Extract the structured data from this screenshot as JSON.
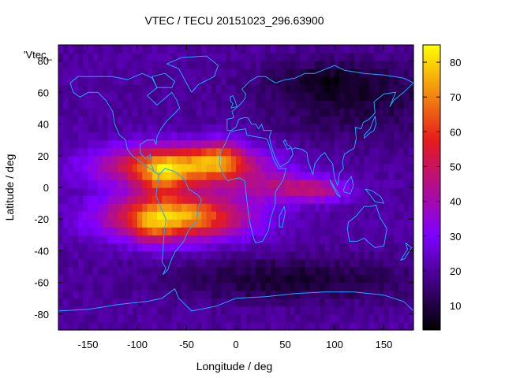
{
  "chart_data": {
    "type": "heatmap",
    "title": "VTEC / TECU 20151023_296.63900",
    "xlabel": "Longitude / deg",
    "ylabel": "Latitude / deg",
    "series_key": "'Vtec_",
    "xlim": [
      -180,
      180
    ],
    "ylim": [
      -90,
      90
    ],
    "x_ticks": [
      -150,
      -100,
      -50,
      0,
      50,
      100,
      150
    ],
    "y_ticks": [
      -80,
      -60,
      -40,
      -20,
      0,
      20,
      40,
      60,
      80
    ],
    "colorbar": {
      "range": [
        3,
        85
      ],
      "ticks": [
        10,
        20,
        30,
        40,
        50,
        60,
        70,
        80
      ]
    },
    "colormap": [
      "#000000",
      "#7f00ff",
      "#e51c1c",
      "#ffff00"
    ],
    "coastline_color": "#1ea7ff",
    "grid_resolution_deg": 5,
    "background_level": 20,
    "features": [
      {
        "name": "equatorial anomaly crest north",
        "lon": -55,
        "lat": 14,
        "sigma_lon": 55,
        "sigma_lat": 9,
        "vtec": 54
      },
      {
        "name": "equatorial anomaly crest south",
        "lon": -60,
        "lat": -18,
        "sigma_lon": 50,
        "sigma_lat": 10,
        "vtec": 56
      },
      {
        "name": "peak south america",
        "lon": -75,
        "lat": 5,
        "sigma_lon": 16,
        "sigma_lat": 8,
        "vtec": 20
      },
      {
        "name": "peak atlantic",
        "lon": -15,
        "lat": 20,
        "sigma_lon": 15,
        "sigma_lat": 8,
        "vtec": 18
      },
      {
        "name": "peak south",
        "lon": -85,
        "lat": -25,
        "sigma_lon": 15,
        "sigma_lat": 8,
        "vtec": 14
      },
      {
        "name": "africa tongue",
        "lon": 55,
        "lat": 0,
        "sigma_lon": 35,
        "sigma_lat": 6,
        "vtec": 22
      },
      {
        "name": "arabian sea tongue",
        "lon": 90,
        "lat": -2,
        "sigma_lon": 18,
        "sigma_lat": 5,
        "vtec": 12
      },
      {
        "name": "subantarctic low",
        "lon": 60,
        "lat": -58,
        "sigma_lon": 90,
        "sigma_lat": 10,
        "vtec": -12
      },
      {
        "name": "north pacific low",
        "lon": 120,
        "lat": 55,
        "sigma_lon": 70,
        "sigma_lat": 18,
        "vtec": -10
      },
      {
        "name": "siberia low",
        "lon": 90,
        "lat": 68,
        "sigma_lon": 40,
        "sigma_lat": 8,
        "vtec": -7
      }
    ],
    "coastlines": [
      {
        "name": "north-america",
        "points": [
          [
            -168,
            66
          ],
          [
            -160,
            70
          ],
          [
            -140,
            70
          ],
          [
            -125,
            70
          ],
          [
            -110,
            68
          ],
          [
            -95,
            72
          ],
          [
            -85,
            69
          ],
          [
            -80,
            63
          ],
          [
            -90,
            58
          ],
          [
            -80,
            52
          ],
          [
            -65,
            60
          ],
          [
            -60,
            55
          ],
          [
            -57,
            50
          ],
          [
            -65,
            45
          ],
          [
            -70,
            42
          ],
          [
            -76,
            37
          ],
          [
            -80,
            32
          ],
          [
            -81,
            27
          ],
          [
            -83,
            30
          ],
          [
            -90,
            30
          ],
          [
            -97,
            27
          ],
          [
            -97,
            22
          ],
          [
            -92,
            18
          ],
          [
            -87,
            21
          ],
          [
            -86,
            15
          ],
          [
            -83,
            10
          ],
          [
            -78,
            8
          ],
          [
            -85,
            11
          ],
          [
            -92,
            14
          ],
          [
            -105,
            20
          ],
          [
            -110,
            24
          ],
          [
            -112,
            30
          ],
          [
            -118,
            33
          ],
          [
            -123,
            40
          ],
          [
            -125,
            48
          ],
          [
            -132,
            55
          ],
          [
            -140,
            60
          ],
          [
            -150,
            60
          ],
          [
            -158,
            57
          ],
          [
            -165,
            60
          ],
          [
            -168,
            66
          ]
        ]
      },
      {
        "name": "south-america",
        "points": [
          [
            -78,
            8
          ],
          [
            -72,
            12
          ],
          [
            -62,
            10
          ],
          [
            -52,
            5
          ],
          [
            -48,
            -1
          ],
          [
            -38,
            -5
          ],
          [
            -35,
            -8
          ],
          [
            -38,
            -13
          ],
          [
            -40,
            -22
          ],
          [
            -48,
            -27
          ],
          [
            -53,
            -34
          ],
          [
            -58,
            -38
          ],
          [
            -62,
            -41
          ],
          [
            -65,
            -45
          ],
          [
            -67,
            -48
          ],
          [
            -69,
            -52
          ],
          [
            -74,
            -55
          ],
          [
            -71,
            -51
          ],
          [
            -75,
            -47
          ],
          [
            -74,
            -40
          ],
          [
            -73,
            -30
          ],
          [
            -71,
            -20
          ],
          [
            -76,
            -13
          ],
          [
            -81,
            -5
          ],
          [
            -80,
            0
          ],
          [
            -78,
            8
          ]
        ]
      },
      {
        "name": "greenland",
        "points": [
          [
            -45,
            60
          ],
          [
            -38,
            65
          ],
          [
            -22,
            70
          ],
          [
            -18,
            77
          ],
          [
            -30,
            83
          ],
          [
            -55,
            82
          ],
          [
            -70,
            78
          ],
          [
            -58,
            75
          ],
          [
            -52,
            68
          ],
          [
            -45,
            60
          ]
        ]
      },
      {
        "name": "africa",
        "points": [
          [
            -17,
            15
          ],
          [
            -16,
            21
          ],
          [
            -10,
            29
          ],
          [
            -6,
            35
          ],
          [
            0,
            36
          ],
          [
            10,
            37
          ],
          [
            11,
            33
          ],
          [
            20,
            32
          ],
          [
            30,
            31
          ],
          [
            32,
            30
          ],
          [
            35,
            24
          ],
          [
            38,
            18
          ],
          [
            43,
            12
          ],
          [
            51,
            12
          ],
          [
            48,
            5
          ],
          [
            40,
            -3
          ],
          [
            40,
            -10
          ],
          [
            35,
            -20
          ],
          [
            33,
            -27
          ],
          [
            27,
            -34
          ],
          [
            20,
            -35
          ],
          [
            18,
            -32
          ],
          [
            14,
            -22
          ],
          [
            12,
            -13
          ],
          [
            10,
            -2
          ],
          [
            9,
            4
          ],
          [
            4,
            6
          ],
          [
            -5,
            5
          ],
          [
            -8,
            4
          ],
          [
            -13,
            8
          ],
          [
            -17,
            15
          ]
        ]
      },
      {
        "name": "europe-asia",
        "points": [
          [
            -9,
            36
          ],
          [
            -9,
            43
          ],
          [
            -2,
            44
          ],
          [
            -4,
            48
          ],
          [
            2,
            51
          ],
          [
            5,
            53
          ],
          [
            9,
            56
          ],
          [
            10,
            59
          ],
          [
            6,
            62
          ],
          [
            14,
            67
          ],
          [
            22,
            70
          ],
          [
            30,
            70
          ],
          [
            40,
            66
          ],
          [
            50,
            68
          ],
          [
            60,
            69
          ],
          [
            70,
            72
          ],
          [
            80,
            72
          ],
          [
            100,
            77
          ],
          [
            110,
            74
          ],
          [
            130,
            72
          ],
          [
            150,
            71
          ],
          [
            170,
            69
          ],
          [
            180,
            66
          ],
          [
            170,
            60
          ],
          [
            160,
            55
          ],
          [
            156,
            51
          ],
          [
            162,
            60
          ],
          [
            150,
            59
          ],
          [
            140,
            54
          ],
          [
            141,
            47
          ],
          [
            135,
            43
          ],
          [
            129,
            41
          ],
          [
            127,
            37
          ],
          [
            121,
            38
          ],
          [
            122,
            31
          ],
          [
            120,
            25
          ],
          [
            110,
            21
          ],
          [
            108,
            16
          ],
          [
            109,
            12
          ],
          [
            105,
            9
          ],
          [
            103,
            1
          ],
          [
            100,
            6
          ],
          [
            98,
            15
          ],
          [
            94,
            18
          ],
          [
            90,
            22
          ],
          [
            86,
            20
          ],
          [
            80,
            15
          ],
          [
            78,
            8
          ],
          [
            73,
            17
          ],
          [
            72,
            22
          ],
          [
            67,
            24
          ],
          [
            60,
            25
          ],
          [
            57,
            24
          ],
          [
            55,
            26
          ],
          [
            52,
            27
          ],
          [
            50,
            30
          ],
          [
            48,
            29
          ],
          [
            52,
            24
          ],
          [
            56,
            25
          ],
          [
            58,
            21
          ],
          [
            53,
            16
          ],
          [
            45,
            13
          ],
          [
            42,
            16
          ],
          [
            38,
            22
          ],
          [
            35,
            28
          ],
          [
            34,
            32
          ],
          [
            36,
            36
          ],
          [
            28,
            36
          ],
          [
            26,
            40
          ],
          [
            23,
            37
          ],
          [
            20,
            40
          ],
          [
            16,
            40
          ],
          [
            12,
            44
          ],
          [
            8,
            44
          ],
          [
            3,
            43
          ],
          [
            0,
            38
          ],
          [
            -5,
            36
          ],
          [
            -9,
            36
          ]
        ]
      },
      {
        "name": "australia",
        "points": [
          [
            114,
            -22
          ],
          [
            122,
            -18
          ],
          [
            130,
            -12
          ],
          [
            137,
            -12
          ],
          [
            142,
            -11
          ],
          [
            146,
            -19
          ],
          [
            153,
            -26
          ],
          [
            150,
            -37
          ],
          [
            141,
            -38
          ],
          [
            135,
            -35
          ],
          [
            130,
            -32
          ],
          [
            123,
            -34
          ],
          [
            115,
            -34
          ],
          [
            113,
            -26
          ],
          [
            114,
            -22
          ]
        ]
      },
      {
        "name": "antarctica",
        "points": [
          [
            -180,
            -78
          ],
          [
            -150,
            -77
          ],
          [
            -120,
            -74
          ],
          [
            -90,
            -72
          ],
          [
            -75,
            -70
          ],
          [
            -62,
            -64
          ],
          [
            -58,
            -70
          ],
          [
            -45,
            -78
          ],
          [
            -20,
            -75
          ],
          [
            0,
            -70
          ],
          [
            30,
            -69
          ],
          [
            60,
            -67
          ],
          [
            90,
            -66
          ],
          [
            120,
            -66
          ],
          [
            150,
            -68
          ],
          [
            170,
            -72
          ],
          [
            180,
            -78
          ],
          [
            180,
            -90
          ],
          [
            -180,
            -90
          ],
          [
            -180,
            -78
          ]
        ]
      },
      {
        "name": "madagascar",
        "points": [
          [
            44,
            -25
          ],
          [
            44,
            -18
          ],
          [
            49,
            -12
          ],
          [
            50,
            -16
          ],
          [
            47,
            -25
          ],
          [
            44,
            -25
          ]
        ]
      },
      {
        "name": "britain",
        "points": [
          [
            -5,
            50
          ],
          [
            1,
            51
          ],
          [
            -1,
            55
          ],
          [
            -3,
            58
          ],
          [
            -6,
            57
          ],
          [
            -5,
            54
          ],
          [
            -3,
            53
          ],
          [
            -5,
            50
          ]
        ]
      },
      {
        "name": "japan",
        "points": [
          [
            130,
            31
          ],
          [
            135,
            34
          ],
          [
            140,
            36
          ],
          [
            142,
            40
          ],
          [
            141,
            45
          ],
          [
            139,
            42
          ],
          [
            136,
            37
          ],
          [
            130,
            33
          ],
          [
            130,
            31
          ]
        ]
      },
      {
        "name": "borneo",
        "points": [
          [
            109,
            -2
          ],
          [
            111,
            2
          ],
          [
            117,
            7
          ],
          [
            119,
            1
          ],
          [
            116,
            -4
          ],
          [
            110,
            -3
          ],
          [
            109,
            -2
          ]
        ]
      },
      {
        "name": "sumatra",
        "points": [
          [
            95,
            5
          ],
          [
            100,
            0
          ],
          [
            106,
            -6
          ],
          [
            103,
            -5
          ],
          [
            98,
            1
          ],
          [
            95,
            5
          ]
        ]
      },
      {
        "name": "new-guinea",
        "points": [
          [
            131,
            -1
          ],
          [
            138,
            -2
          ],
          [
            147,
            -6
          ],
          [
            150,
            -10
          ],
          [
            141,
            -9
          ],
          [
            135,
            -4
          ],
          [
            131,
            -1
          ]
        ]
      },
      {
        "name": "new-zealand",
        "points": [
          [
            172,
            -35
          ],
          [
            178,
            -38
          ],
          [
            175,
            -41
          ],
          [
            171,
            -45
          ],
          [
            167,
            -46
          ],
          [
            172,
            -41
          ],
          [
            174,
            -39
          ],
          [
            172,
            -35
          ]
        ]
      },
      {
        "name": "baffin",
        "points": [
          [
            -80,
            63
          ],
          [
            -65,
            63
          ],
          [
            -62,
            67
          ],
          [
            -72,
            72
          ],
          [
            -85,
            70
          ],
          [
            -80,
            63
          ]
        ]
      }
    ]
  }
}
